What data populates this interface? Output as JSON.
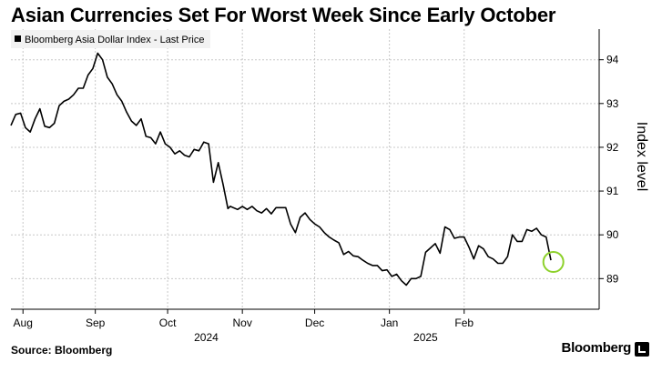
{
  "title": "Asian Currencies Set For Worst Week Since Early October",
  "source": "Source: Bloomberg",
  "brand": "Bloomberg",
  "colors": {
    "line": "#000000",
    "grid": "#c8c8c8",
    "highlight": "#8ed12c",
    "legend_bg": "#f2f2f2"
  },
  "chart_data": {
    "type": "line",
    "title": "Asian Currencies Set For Worst Week Since Early October",
    "ylabel": "Index level",
    "xlabel": "",
    "legend": [
      {
        "name": "Bloomberg Asia Dollar Index - Last Price"
      }
    ],
    "legend_position": "top-left",
    "ylim": [
      88.3,
      94.7
    ],
    "yticks": [
      89,
      90,
      91,
      92,
      93,
      94
    ],
    "x_range_days": [
      -8,
      236
    ],
    "months": [
      {
        "label": "Aug",
        "day": -3
      },
      {
        "label": "Sep",
        "day": 27
      },
      {
        "label": "Oct",
        "day": 57
      },
      {
        "label": "Nov",
        "day": 88
      },
      {
        "label": "Dec",
        "day": 118
      },
      {
        "label": "Jan",
        "day": 149
      },
      {
        "label": "Feb",
        "day": 180
      }
    ],
    "years": [
      {
        "label": "2024",
        "day": 73
      },
      {
        "label": "2025",
        "day": 164
      }
    ],
    "series": [
      {
        "name": "Bloomberg Asia Dollar Index - Last Price",
        "x": [
          -8,
          -6,
          -4,
          -2,
          0,
          2,
          4,
          6,
          8,
          10,
          12,
          14,
          16,
          18,
          20,
          22,
          24,
          26,
          28,
          30,
          32,
          34,
          36,
          38,
          40,
          42,
          44,
          46,
          48,
          50,
          52,
          54,
          56,
          58,
          60,
          62,
          64,
          66,
          68,
          70,
          72,
          74,
          76,
          78,
          80,
          82,
          83,
          86,
          88,
          90,
          92,
          94,
          96,
          98,
          100,
          102,
          104,
          106,
          108,
          110,
          112,
          114,
          116,
          118,
          120,
          122,
          124,
          126,
          128,
          130,
          132,
          134,
          136,
          138,
          140,
          142,
          144,
          146,
          148,
          150,
          152,
          154,
          156,
          158,
          160,
          162,
          164,
          166,
          168,
          170,
          172,
          174,
          176,
          178,
          180,
          182,
          184,
          186,
          188,
          190,
          192,
          194
        ],
        "y": [
          92.5,
          92.75,
          92.78,
          92.45,
          92.35,
          92.65,
          92.88,
          92.48,
          92.45,
          92.55,
          92.95,
          93.05,
          93.1,
          93.2,
          93.35,
          93.35,
          93.65,
          93.8,
          94.15,
          94.0,
          93.6,
          93.45,
          93.2,
          93.05,
          92.8,
          92.6,
          92.5,
          92.65,
          92.25,
          92.22,
          92.08,
          92.35,
          92.08,
          92.0,
          91.85,
          91.92,
          91.82,
          91.78,
          91.95,
          91.92,
          92.12,
          92.08,
          91.2,
          91.65,
          91.15,
          90.6,
          90.65,
          90.58,
          90.65,
          90.58,
          90.65,
          90.55,
          90.5,
          90.6,
          90.48,
          90.62,
          90.62,
          90.62,
          90.25,
          90.05,
          90.4,
          90.5,
          90.35,
          90.25,
          90.18,
          90.05,
          89.95,
          89.88,
          89.82,
          89.55,
          89.62,
          89.52,
          89.5,
          89.42,
          89.35,
          89.3,
          89.3,
          89.18,
          89.2,
          89.05,
          89.1,
          88.95,
          88.85,
          89.0,
          89.0,
          89.05,
          89.6,
          89.7,
          89.8,
          89.58,
          90.18,
          90.12,
          89.92,
          89.95,
          89.95,
          89.72,
          89.45,
          89.75,
          89.68,
          89.5,
          89.45,
          89.35
        ]
      }
    ],
    "series_tail": {
      "x": [
        196,
        198,
        200,
        202,
        204,
        206,
        208,
        210,
        212,
        214,
        216
      ],
      "y": [
        89.35,
        89.5,
        90.0,
        89.85,
        89.85,
        90.12,
        90.08,
        90.15,
        90.0,
        89.95,
        89.42
      ]
    },
    "highlight_point": {
      "x": 217,
      "y": 89.38
    }
  }
}
